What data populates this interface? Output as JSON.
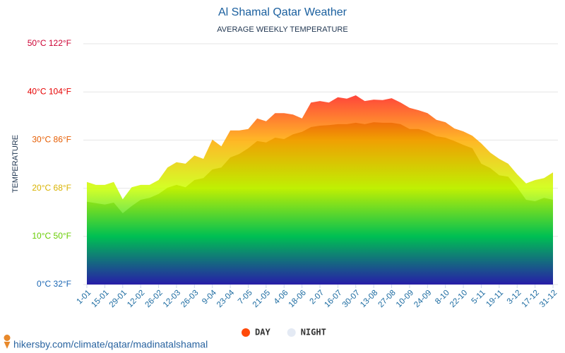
{
  "chart_data": {
    "type": "area",
    "title": "Al Shamal Qatar Weather",
    "subtitle": "AVERAGE WEEKLY TEMPERATURE",
    "y_label": "TEMPERATURE",
    "source": "hikersby.com/climate/qatar/madinatalshamal",
    "categories": [
      "1-01",
      null,
      "15-01",
      null,
      "29-01",
      null,
      "12-02",
      null,
      "26-02",
      null,
      "12-03",
      null,
      "26-03",
      null,
      "9-04",
      null,
      "23-04",
      null,
      "7-05",
      null,
      "21-05",
      null,
      "4-06",
      null,
      "18-06",
      null,
      "2-07",
      null,
      "16-07",
      null,
      "30-07",
      null,
      "13-08",
      null,
      "27-08",
      null,
      "10-09",
      null,
      "24-09",
      null,
      "8-10",
      null,
      "22-10",
      null,
      "5-11",
      null,
      "19-11",
      null,
      "3-12",
      null,
      "17-12",
      null,
      "31-12"
    ],
    "series": [
      {
        "name": "DAY",
        "color": "#ff4a0a",
        "values": [
          21.3,
          20.7,
          20.7,
          21.3,
          17.7,
          20.2,
          20.7,
          20.7,
          21.7,
          24.3,
          25.4,
          25.1,
          26.8,
          26.1,
          30.1,
          28.7,
          32.0,
          32.0,
          32.3,
          34.5,
          33.9,
          35.6,
          35.6,
          35.3,
          34.5,
          37.8,
          38.1,
          37.8,
          38.9,
          38.6,
          39.3,
          38.1,
          38.4,
          38.3,
          38.7,
          37.8,
          36.7,
          36.2,
          35.6,
          34.2,
          33.7,
          32.4,
          31.8,
          30.9,
          29.3,
          27.4,
          26.1,
          25.1,
          22.9,
          21.0,
          21.7,
          22.1,
          23.3
        ]
      },
      {
        "name": "NIGHT",
        "color": "#e4eaf4",
        "values": [
          17.2,
          16.9,
          16.6,
          17.0,
          14.8,
          16.3,
          17.6,
          18.0,
          18.8,
          20.1,
          20.7,
          20.2,
          21.7,
          22.1,
          23.9,
          24.3,
          26.4,
          27.1,
          28.3,
          29.8,
          29.5,
          30.5,
          30.2,
          31.2,
          31.7,
          32.7,
          33.0,
          33.1,
          33.3,
          33.3,
          33.6,
          33.3,
          33.7,
          33.6,
          33.6,
          33.3,
          32.3,
          32.3,
          31.7,
          30.8,
          30.5,
          29.8,
          29.0,
          28.3,
          25.1,
          24.2,
          22.7,
          22.4,
          20.2,
          17.6,
          17.3,
          18.0,
          17.6
        ]
      }
    ],
    "ylim": [
      0,
      50
    ],
    "yticks": [
      {
        "value": 0,
        "label": "0°C 32°F"
      },
      {
        "value": 10,
        "label": "10°C 50°F"
      },
      {
        "value": 20,
        "label": "20°C 68°F"
      },
      {
        "value": 30,
        "label": "30°C 86°F"
      },
      {
        "value": 40,
        "label": "40°C 104°F"
      },
      {
        "value": 50,
        "label": "50°C 122°F"
      }
    ],
    "ytick_colors": [
      "#1a66b3",
      "#66cc00",
      "#d9b300",
      "#e65c00",
      "#e60000",
      "#cc0033"
    ],
    "fill_gradient": [
      "#ff0033",
      "#ff1a1a",
      "#ffaa00",
      "#ccff00",
      "#00cc55",
      "#2a1fb0"
    ],
    "grid": true
  }
}
